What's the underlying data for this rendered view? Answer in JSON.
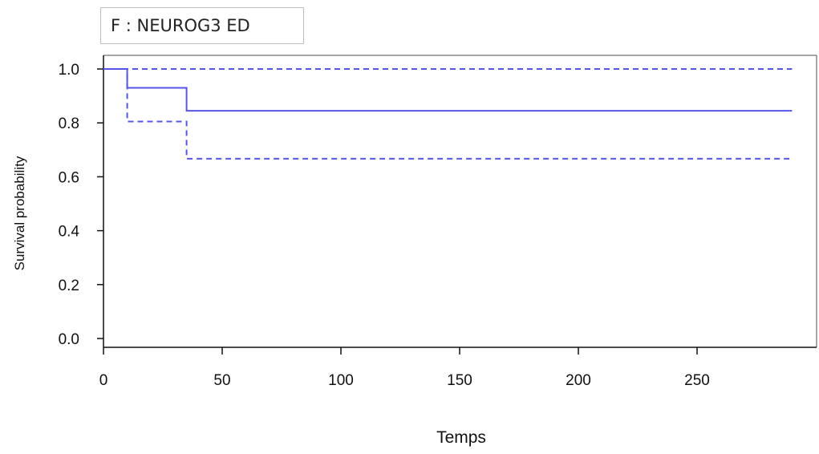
{
  "panel_label": "F : NEUROG3 ED",
  "chart_data": {
    "type": "line",
    "title": "F : NEUROG3 ED",
    "xlabel": "Temps",
    "ylabel": "Survival probability",
    "xlim": [
      0,
      300
    ],
    "ylim": [
      0,
      1.0
    ],
    "xticks": [
      0,
      50,
      100,
      150,
      200,
      250
    ],
    "yticks": [
      0.0,
      0.2,
      0.4,
      0.6,
      0.8,
      1.0
    ],
    "grid": false,
    "line_color": "#5555ee",
    "series": [
      {
        "style": "solid",
        "x": [
          0,
          10,
          10,
          35,
          35,
          290
        ],
        "y": [
          1.0,
          1.0,
          0.93,
          0.93,
          0.845,
          0.845
        ]
      },
      {
        "style": "dashed",
        "x": [
          0,
          10,
          10,
          35,
          35,
          290
        ],
        "y": [
          1.0,
          1.0,
          0.805,
          0.805,
          0.667,
          0.667
        ]
      },
      {
        "style": "dashed",
        "x": [
          0,
          290
        ],
        "y": [
          1.0,
          1.0
        ]
      }
    ]
  }
}
